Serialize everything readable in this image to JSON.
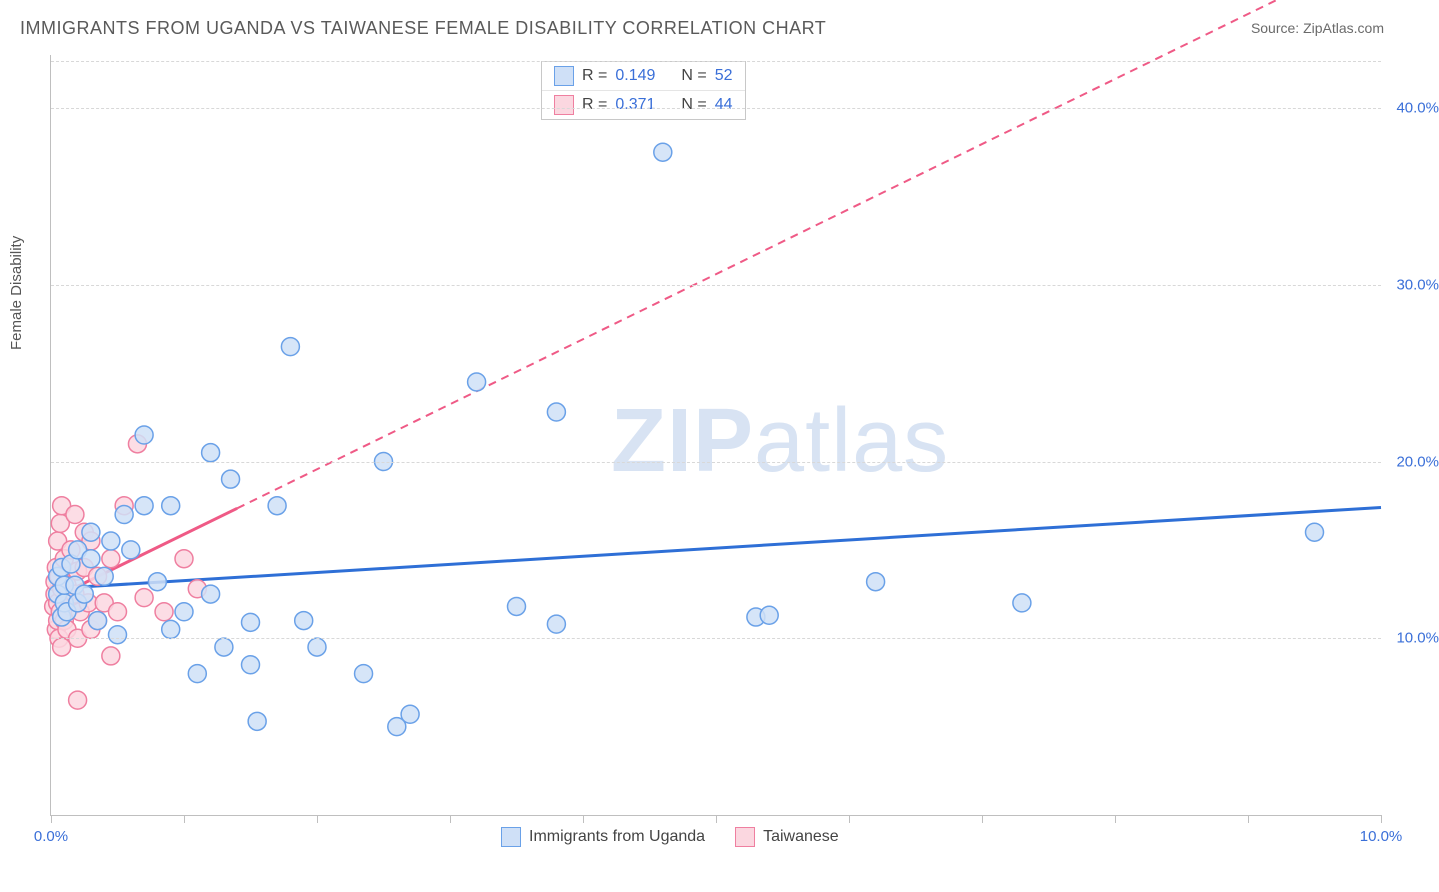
{
  "title": "IMMIGRANTS FROM UGANDA VS TAIWANESE FEMALE DISABILITY CORRELATION CHART",
  "source": "Source: ZipAtlas.com",
  "y_axis_label": "Female Disability",
  "watermark": {
    "bold": "ZIP",
    "light": "atlas"
  },
  "chart": {
    "type": "scatter",
    "background_color": "#ffffff",
    "grid_color": "#d8d8d8",
    "axis_color": "#bfbfbf",
    "text_color": "#555555",
    "value_color": "#3a6fd8",
    "xlim": [
      0,
      10
    ],
    "ylim": [
      0,
      43
    ],
    "y_ticks": [
      10,
      20,
      30,
      40
    ],
    "y_tick_labels": [
      "10.0%",
      "20.0%",
      "30.0%",
      "40.0%"
    ],
    "x_ticks": [
      0,
      1,
      2,
      3,
      4,
      5,
      6,
      7,
      8,
      9,
      10
    ],
    "x_tick_labels": {
      "0": "0.0%",
      "10": "10.0%"
    },
    "marker_radius": 9,
    "marker_stroke_width": 1.5,
    "series": [
      {
        "name": "Immigrants from Uganda",
        "fill": "#cfe0f7",
        "stroke": "#6aa1e8",
        "R": "0.149",
        "N": "52",
        "trend": {
          "color": "#2e6fd6",
          "width": 3,
          "dash": null,
          "x1": 0.0,
          "y1": 12.8,
          "x2": 10.0,
          "y2": 17.4,
          "solid_until_x": 10.0
        },
        "points": [
          [
            0.05,
            12.5
          ],
          [
            0.05,
            13.5
          ],
          [
            0.08,
            11.2
          ],
          [
            0.08,
            14.0
          ],
          [
            0.1,
            12.0
          ],
          [
            0.1,
            13.0
          ],
          [
            0.12,
            11.5
          ],
          [
            0.15,
            14.2
          ],
          [
            0.18,
            13.0
          ],
          [
            0.2,
            12.0
          ],
          [
            0.2,
            15.0
          ],
          [
            0.25,
            12.5
          ],
          [
            0.3,
            14.5
          ],
          [
            0.3,
            16.0
          ],
          [
            0.35,
            11.0
          ],
          [
            0.4,
            13.5
          ],
          [
            0.45,
            15.5
          ],
          [
            0.5,
            10.2
          ],
          [
            0.55,
            17.0
          ],
          [
            0.6,
            15.0
          ],
          [
            0.7,
            17.5
          ],
          [
            0.7,
            21.5
          ],
          [
            0.8,
            13.2
          ],
          [
            0.9,
            10.5
          ],
          [
            0.9,
            17.5
          ],
          [
            1.0,
            11.5
          ],
          [
            1.1,
            8.0
          ],
          [
            1.2,
            20.5
          ],
          [
            1.2,
            12.5
          ],
          [
            1.3,
            9.5
          ],
          [
            1.35,
            19.0
          ],
          [
            1.5,
            10.9
          ],
          [
            1.5,
            8.5
          ],
          [
            1.7,
            17.5
          ],
          [
            1.8,
            26.5
          ],
          [
            1.9,
            11.0
          ],
          [
            2.0,
            9.5
          ],
          [
            2.35,
            8.0
          ],
          [
            2.5,
            20.0
          ],
          [
            2.6,
            5.0
          ],
          [
            2.7,
            5.7
          ],
          [
            3.2,
            24.5
          ],
          [
            3.5,
            11.8
          ],
          [
            3.8,
            22.8
          ],
          [
            3.8,
            10.8
          ],
          [
            4.6,
            37.5
          ],
          [
            5.3,
            11.2
          ],
          [
            5.4,
            11.3
          ],
          [
            6.2,
            13.2
          ],
          [
            7.3,
            12.0
          ],
          [
            9.5,
            16.0
          ],
          [
            1.55,
            5.3
          ]
        ]
      },
      {
        "name": "Taiwanese",
        "fill": "#fbd7e0",
        "stroke": "#ef7fa0",
        "R": "0.371",
        "N": "44",
        "trend": {
          "color": "#ef5a86",
          "width": 3,
          "dash": "8,6",
          "x1": 0.0,
          "y1": 12.2,
          "x2": 10.0,
          "y2": 49.0,
          "solid_until_x": 1.4
        },
        "points": [
          [
            0.02,
            11.8
          ],
          [
            0.03,
            12.5
          ],
          [
            0.03,
            13.2
          ],
          [
            0.04,
            10.5
          ],
          [
            0.04,
            14.0
          ],
          [
            0.05,
            11.0
          ],
          [
            0.05,
            12.0
          ],
          [
            0.05,
            15.5
          ],
          [
            0.06,
            10.0
          ],
          [
            0.06,
            13.5
          ],
          [
            0.07,
            11.5
          ],
          [
            0.07,
            16.5
          ],
          [
            0.08,
            9.5
          ],
          [
            0.08,
            12.8
          ],
          [
            0.08,
            17.5
          ],
          [
            0.1,
            11.0
          ],
          [
            0.1,
            14.5
          ],
          [
            0.12,
            10.5
          ],
          [
            0.12,
            13.0
          ],
          [
            0.15,
            11.8
          ],
          [
            0.15,
            15.0
          ],
          [
            0.18,
            12.5
          ],
          [
            0.18,
            17.0
          ],
          [
            0.2,
            10.0
          ],
          [
            0.2,
            13.8
          ],
          [
            0.22,
            11.5
          ],
          [
            0.25,
            14.0
          ],
          [
            0.25,
            16.0
          ],
          [
            0.28,
            12.0
          ],
          [
            0.3,
            10.5
          ],
          [
            0.3,
            15.5
          ],
          [
            0.35,
            11.0
          ],
          [
            0.35,
            13.5
          ],
          [
            0.4,
            12.0
          ],
          [
            0.45,
            9.0
          ],
          [
            0.45,
            14.5
          ],
          [
            0.5,
            11.5
          ],
          [
            0.55,
            17.5
          ],
          [
            0.2,
            6.5
          ],
          [
            0.65,
            21.0
          ],
          [
            0.7,
            12.3
          ],
          [
            0.85,
            11.5
          ],
          [
            1.0,
            14.5
          ],
          [
            1.1,
            12.8
          ]
        ]
      }
    ]
  },
  "legend_top": {
    "r_label": "R =",
    "n_label": "N ="
  },
  "legend_bottom_labels": [
    "Immigrants from Uganda",
    "Taiwanese"
  ]
}
